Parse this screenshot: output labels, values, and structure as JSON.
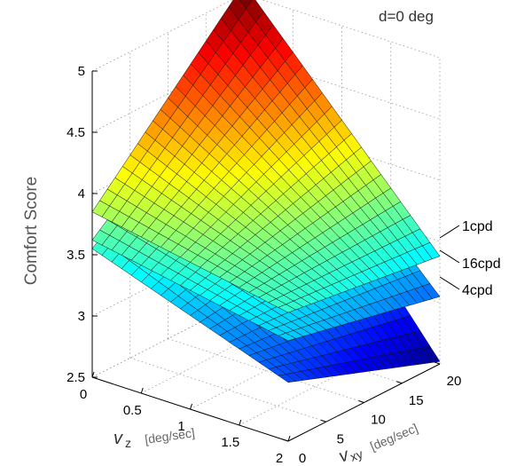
{
  "chart_data": {
    "type": "surface",
    "title": "d=0 deg",
    "zlabel": "Comfort Score",
    "vz_label": {
      "symbol": "v",
      "subscript": "z",
      "unit": "[deg/sec]"
    },
    "vxy_label": {
      "symbol": "v",
      "subscript": "xy",
      "unit": "[deg/sec]"
    },
    "vz_ticks": [
      "0",
      "0.5",
      "1",
      "1.5",
      "2"
    ],
    "vxy_ticks": [
      "0",
      "5",
      "10",
      "15",
      "20"
    ],
    "z_ticks": [
      "2.5",
      "3",
      "3.5",
      "4",
      "4.5",
      "5"
    ],
    "vz_range": [
      0,
      2
    ],
    "vxy_range": [
      0,
      20
    ],
    "z_range": [
      2.5,
      5
    ],
    "grid": true,
    "colormap": "jet",
    "series": [
      {
        "name": "1cpd",
        "corners": {
          "vz0_vxy0": 3.85,
          "vz2_vxy0": 3.55,
          "vz0_vxy20": 5.08,
          "vz2_vxy20": 3.38
        }
      },
      {
        "name": "16cpd",
        "corners": {
          "vz0_vxy0": 3.62,
          "vz2_vxy0": 3.32,
          "vz0_vxy20": 4.65,
          "vz2_vxy20": 3.05
        }
      },
      {
        "name": "4cpd",
        "corners": {
          "vz0_vxy0": 3.55,
          "vz2_vxy0": 2.98,
          "vz0_vxy20": 4.5,
          "vz2_vxy20": 2.52
        }
      }
    ]
  }
}
